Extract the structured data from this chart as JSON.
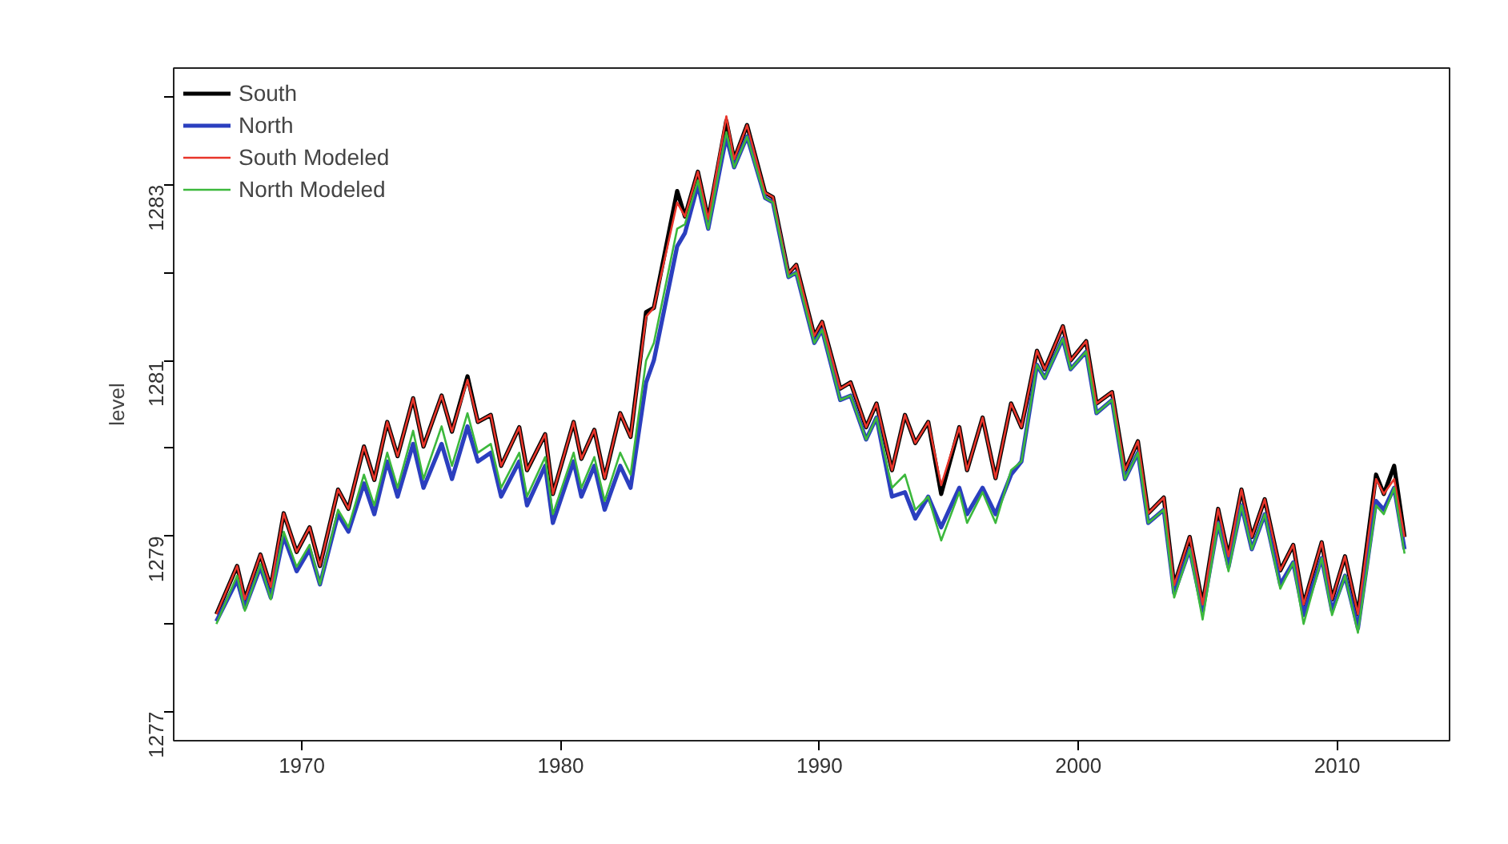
{
  "chart_data": {
    "type": "line",
    "ylabel": "level",
    "legend": "top left",
    "grid": false,
    "line_style": "solid",
    "x": [
      1966.7,
      1967.5,
      1967.8,
      1968.4,
      1968.8,
      1969.3,
      1969.8,
      1970.3,
      1970.7,
      1971.4,
      1971.8,
      1972.4,
      1972.8,
      1973.3,
      1973.7,
      1974.3,
      1974.7,
      1975.4,
      1975.8,
      1976.4,
      1976.8,
      1977.3,
      1977.7,
      1978.4,
      1978.7,
      1979.4,
      1979.7,
      1980.5,
      1980.8,
      1981.3,
      1981.7,
      1982.3,
      1982.7,
      1983.3,
      1983.6,
      1984.5,
      1984.8,
      1985.3,
      1985.7,
      1986.4,
      1986.7,
      1987.2,
      1987.9,
      1988.2,
      1988.8,
      1989.1,
      1989.8,
      1990.1,
      1990.8,
      1991.2,
      1991.8,
      1992.2,
      1992.8,
      1993.3,
      1993.7,
      1994.2,
      1994.7,
      1995.4,
      1995.7,
      1996.3,
      1996.8,
      1997.4,
      1997.8,
      1998.4,
      1998.7,
      1999.4,
      1999.7,
      2000.3,
      2000.7,
      2001.3,
      2001.8,
      2002.3,
      2002.7,
      2003.3,
      2003.7,
      2004.3,
      2004.8,
      2005.4,
      2005.8,
      2006.3,
      2006.7,
      2007.2,
      2007.8,
      2008.3,
      2008.7,
      2009.4,
      2009.8,
      2010.3,
      2010.8,
      2011.5,
      2011.8,
      2012.2,
      2012.6
    ],
    "xlim": [
      1965.05,
      2014.34
    ],
    "xticks": [
      1970,
      1980,
      1990,
      2000,
      2010
    ],
    "ylim": [
      1276.67,
      1284.33
    ],
    "yticks": [
      1277,
      {
        "value": 1278,
        "label": null
      },
      1279,
      {
        "value": 1280,
        "label": null
      },
      1281,
      {
        "value": 1282,
        "label": null
      },
      1283,
      {
        "value": 1284,
        "label": null
      }
    ],
    "series": [
      {
        "name": "South",
        "color": "#000000",
        "values": [
          1278.11,
          1278.66,
          1278.28,
          1278.79,
          1278.42,
          1279.26,
          1278.82,
          1279.1,
          1278.66,
          1279.53,
          1279.31,
          1280.02,
          1279.64,
          1280.3,
          1279.91,
          1280.57,
          1280.02,
          1280.6,
          1280.19,
          1280.82,
          1280.3,
          1280.38,
          1279.8,
          1280.24,
          1279.75,
          1280.16,
          1279.48,
          1280.3,
          1279.88,
          1280.21,
          1279.66,
          1280.4,
          1280.13,
          1281.55,
          1281.6,
          1282.93,
          1282.64,
          1283.15,
          1282.61,
          1283.73,
          1283.29,
          1283.68,
          1282.91,
          1282.86,
          1281.99,
          1282.09,
          1281.28,
          1281.44,
          1280.68,
          1280.75,
          1280.24,
          1280.51,
          1279.75,
          1280.38,
          1280.06,
          1280.3,
          1279.48,
          1280.24,
          1279.75,
          1280.35,
          1279.66,
          1280.51,
          1280.24,
          1281.11,
          1280.9,
          1281.39,
          1281.0,
          1281.22,
          1280.51,
          1280.64,
          1279.75,
          1280.08,
          1279.26,
          1279.44,
          1278.44,
          1278.99,
          1278.22,
          1279.31,
          1278.77,
          1279.53,
          1278.99,
          1279.42,
          1278.61,
          1278.9,
          1278.22,
          1278.93,
          1278.28,
          1278.77,
          1278.11,
          1279.7,
          1279.48,
          1279.8,
          1278.99
        ]
      },
      {
        "name": "North",
        "color": "#2b3fbf",
        "values": [
          1278.03,
          1278.5,
          1278.18,
          1278.65,
          1278.3,
          1279.0,
          1278.6,
          1278.85,
          1278.45,
          1279.25,
          1279.05,
          1279.6,
          1279.25,
          1279.85,
          1279.45,
          1280.05,
          1279.55,
          1280.05,
          1279.65,
          1280.25,
          1279.85,
          1279.95,
          1279.45,
          1279.85,
          1279.35,
          1279.8,
          1279.15,
          1279.85,
          1279.45,
          1279.8,
          1279.3,
          1279.8,
          1279.55,
          1280.75,
          1281.0,
          1282.3,
          1282.45,
          1283.0,
          1282.5,
          1283.55,
          1283.2,
          1283.55,
          1282.85,
          1282.8,
          1281.95,
          1282.0,
          1281.2,
          1281.35,
          1280.55,
          1280.6,
          1280.1,
          1280.35,
          1279.45,
          1279.5,
          1279.2,
          1279.45,
          1279.1,
          1279.55,
          1279.25,
          1279.55,
          1279.25,
          1279.7,
          1279.85,
          1280.95,
          1280.8,
          1281.25,
          1280.9,
          1281.1,
          1280.4,
          1280.55,
          1279.65,
          1279.95,
          1279.15,
          1279.3,
          1278.35,
          1278.85,
          1278.15,
          1279.15,
          1278.65,
          1279.35,
          1278.85,
          1279.25,
          1278.45,
          1278.7,
          1278.1,
          1278.75,
          1278.15,
          1278.55,
          1277.95,
          1279.4,
          1279.3,
          1279.55,
          1278.85
        ]
      },
      {
        "name": "South Modeled",
        "color": "#e8352a",
        "values": [
          1278.11,
          1278.66,
          1278.28,
          1278.79,
          1278.42,
          1279.26,
          1278.82,
          1279.1,
          1278.66,
          1279.53,
          1279.31,
          1280.02,
          1279.64,
          1280.3,
          1279.91,
          1280.57,
          1280.02,
          1280.6,
          1280.19,
          1280.78,
          1280.3,
          1280.38,
          1279.8,
          1280.24,
          1279.75,
          1280.16,
          1279.48,
          1280.3,
          1279.88,
          1280.21,
          1279.66,
          1280.4,
          1280.13,
          1281.5,
          1281.6,
          1282.8,
          1282.64,
          1283.15,
          1282.61,
          1283.78,
          1283.29,
          1283.68,
          1282.91,
          1282.86,
          1281.99,
          1282.09,
          1281.28,
          1281.44,
          1280.68,
          1280.75,
          1280.24,
          1280.51,
          1279.75,
          1280.38,
          1280.06,
          1280.3,
          1279.58,
          1280.24,
          1279.75,
          1280.35,
          1279.66,
          1280.51,
          1280.24,
          1281.11,
          1280.9,
          1281.39,
          1281.0,
          1281.22,
          1280.51,
          1280.64,
          1279.75,
          1280.08,
          1279.26,
          1279.44,
          1278.44,
          1278.99,
          1278.22,
          1279.31,
          1278.77,
          1279.53,
          1278.99,
          1279.42,
          1278.61,
          1278.9,
          1278.22,
          1278.93,
          1278.28,
          1278.77,
          1278.11,
          1279.65,
          1279.48,
          1279.65,
          1278.99
        ]
      },
      {
        "name": "North Modeled",
        "color": "#3cb83c",
        "values": [
          1278.0,
          1278.55,
          1278.15,
          1278.68,
          1278.28,
          1279.05,
          1278.65,
          1278.9,
          1278.45,
          1279.3,
          1279.1,
          1279.7,
          1279.35,
          1279.95,
          1279.55,
          1280.2,
          1279.65,
          1280.25,
          1279.8,
          1280.4,
          1279.95,
          1280.05,
          1279.55,
          1279.95,
          1279.45,
          1279.9,
          1279.25,
          1279.95,
          1279.55,
          1279.9,
          1279.4,
          1279.95,
          1279.7,
          1281.0,
          1281.2,
          1282.5,
          1282.55,
          1283.05,
          1282.5,
          1283.6,
          1283.2,
          1283.55,
          1282.85,
          1282.8,
          1281.95,
          1282.0,
          1281.2,
          1281.35,
          1280.55,
          1280.6,
          1280.1,
          1280.35,
          1279.55,
          1279.7,
          1279.3,
          1279.45,
          1278.95,
          1279.5,
          1279.15,
          1279.5,
          1279.15,
          1279.75,
          1279.85,
          1280.95,
          1280.8,
          1281.25,
          1280.9,
          1281.1,
          1280.4,
          1280.55,
          1279.65,
          1279.95,
          1279.15,
          1279.3,
          1278.3,
          1278.85,
          1278.05,
          1279.15,
          1278.6,
          1279.35,
          1278.85,
          1279.25,
          1278.4,
          1278.7,
          1278.0,
          1278.75,
          1278.1,
          1278.55,
          1277.9,
          1279.35,
          1279.25,
          1279.55,
          1278.8
        ]
      }
    ]
  }
}
